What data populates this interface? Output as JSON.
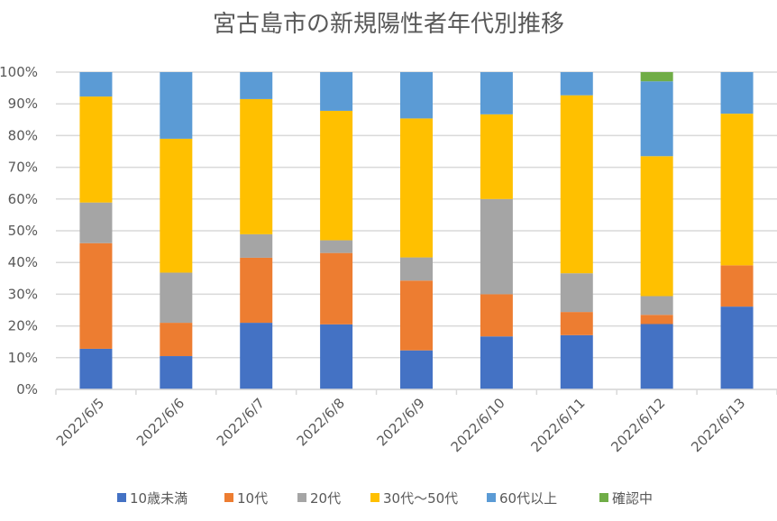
{
  "chart_data": {
    "type": "bar",
    "stacked": true,
    "percent_stacked": true,
    "title": "宮古島市の新規陽性者年代別推移",
    "xlabel": "",
    "ylabel": "",
    "ylim": [
      0,
      100
    ],
    "yticks": [
      "0%",
      "10%",
      "20%",
      "30%",
      "40%",
      "50%",
      "60%",
      "70%",
      "80%",
      "90%",
      "100%"
    ],
    "grid": true,
    "legend_position": "bottom",
    "categories": [
      "2022/6/5",
      "2022/6/6",
      "2022/6/7",
      "2022/6/8",
      "2022/6/9",
      "2022/6/10",
      "2022/6/11",
      "2022/6/12",
      "2022/6/13"
    ],
    "series": [
      {
        "name": "10歳未満",
        "color": "#4472C4",
        "values": [
          12.8,
          10.5,
          21.0,
          20.5,
          12.3,
          16.7,
          17.1,
          20.6,
          26.1
        ]
      },
      {
        "name": "10代",
        "color": "#ED7D31",
        "values": [
          33.3,
          10.5,
          20.5,
          22.5,
          22.0,
          13.3,
          7.3,
          2.9,
          13.0
        ]
      },
      {
        "name": "20代",
        "color": "#A5A5A5",
        "values": [
          12.8,
          15.8,
          7.4,
          4.0,
          7.3,
          30.0,
          12.2,
          5.9,
          0.0
        ]
      },
      {
        "name": "30代～50代",
        "color": "#FFC000",
        "values": [
          33.4,
          42.2,
          42.6,
          40.8,
          43.8,
          26.7,
          56.1,
          44.1,
          47.8
        ]
      },
      {
        "name": "60代以上",
        "color": "#5B9BD5",
        "values": [
          7.7,
          21.0,
          8.5,
          12.2,
          14.6,
          13.3,
          7.3,
          23.6,
          13.1
        ]
      },
      {
        "name": "確認中",
        "color": "#70AD47",
        "values": [
          0,
          0,
          0,
          0,
          0,
          0,
          0,
          2.9,
          0
        ]
      }
    ]
  }
}
